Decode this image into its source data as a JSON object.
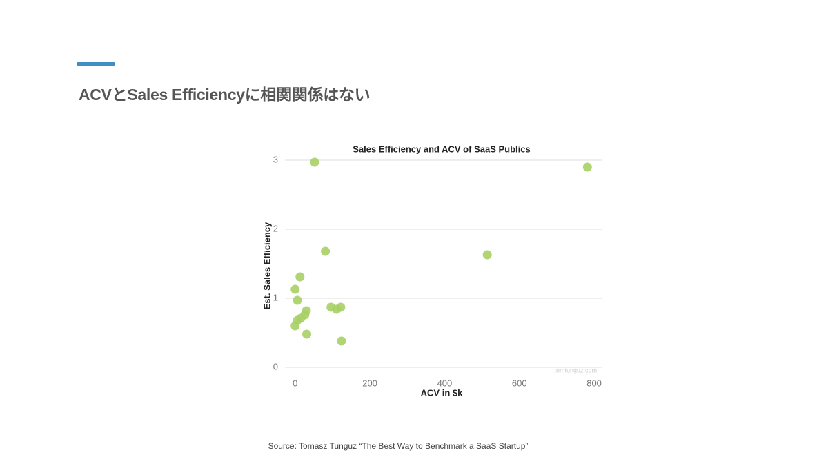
{
  "slide": {
    "title": "ACVとSales Efficiencyに相関関係はない",
    "source": "Source: Tomasz Tunguz “The Best Way to Benchmark a SaaS Startup”"
  },
  "chart_data": {
    "type": "scatter",
    "title": "Sales Efficiency and ACV of SaaS Publics",
    "x_label": "ACV in $k",
    "y_label": "Est. Sales Efficiency",
    "watermark": "tomtunguz.com",
    "series": [
      {
        "name": "SaaS Publics",
        "color": "#a8cf66",
        "x": [
          52,
          782,
          81,
          514,
          13,
          0,
          6,
          30,
          96,
          111,
          122,
          26,
          15,
          6,
          0,
          31,
          124
        ],
        "values": [
          2.97,
          2.9,
          1.68,
          1.63,
          1.31,
          1.13,
          0.97,
          0.82,
          0.87,
          0.84,
          0.87,
          0.76,
          0.71,
          0.68,
          0.6,
          0.48,
          0.38
        ]
      }
    ],
    "xlim": [
      -42,
      822
    ],
    "ylim": [
      0,
      3.05
    ],
    "xticks": [
      0,
      200,
      400,
      600,
      800
    ],
    "yticks": [
      0,
      1,
      2,
      3
    ],
    "grid": true
  }
}
